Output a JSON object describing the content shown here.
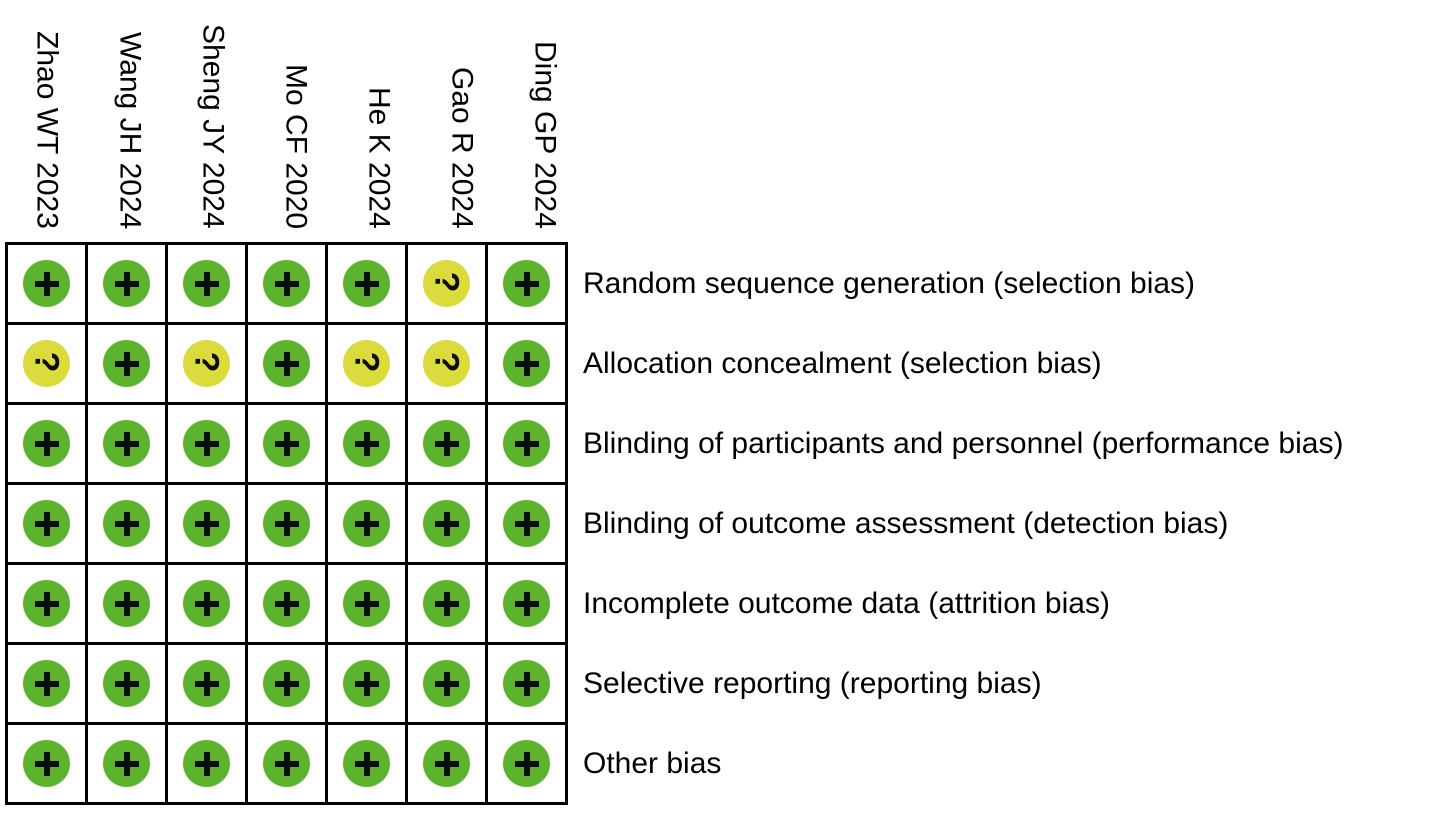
{
  "studies": [
    "Zhao WT 2023",
    "Wang JH 2024",
    "Sheng JY 2024",
    "Mo CF 2020",
    "He K 2024",
    "Gao R 2024",
    "Ding GP 2024"
  ],
  "domains": [
    {
      "label": "Random sequence generation (selection bias)",
      "judgements": [
        "low",
        "low",
        "low",
        "low",
        "low",
        "unclear",
        "low"
      ]
    },
    {
      "label": "Allocation concealment (selection bias)",
      "judgements": [
        "unclear",
        "low",
        "unclear",
        "low",
        "unclear",
        "unclear",
        "low"
      ]
    },
    {
      "label": "Blinding of participants and personnel (performance bias)",
      "judgements": [
        "low",
        "low",
        "low",
        "low",
        "low",
        "low",
        "low"
      ]
    },
    {
      "label": "Blinding of outcome assessment (detection bias)",
      "judgements": [
        "low",
        "low",
        "low",
        "low",
        "low",
        "low",
        "low"
      ]
    },
    {
      "label": "Incomplete outcome data (attrition bias)",
      "judgements": [
        "low",
        "low",
        "low",
        "low",
        "low",
        "low",
        "low"
      ]
    },
    {
      "label": "Selective reporting (reporting bias)",
      "judgements": [
        "low",
        "low",
        "low",
        "low",
        "low",
        "low",
        "low"
      ]
    },
    {
      "label": "Other bias",
      "judgements": [
        "low",
        "low",
        "low",
        "low",
        "low",
        "low",
        "low"
      ]
    }
  ],
  "symbols": {
    "low": "+",
    "unclear": "?"
  },
  "colors": {
    "low": "#5CB32E",
    "unclear": "#DBDB3D",
    "symbol": "#0D0D0D",
    "grid_line": "#000000",
    "background": "#FFFFFF"
  },
  "chart_data": {
    "type": "heatmap",
    "title": "",
    "columns": [
      "Zhao WT 2023",
      "Wang JH 2024",
      "Sheng JY 2024",
      "Mo CF 2020",
      "He K 2024",
      "Gao R 2024",
      "Ding GP 2024"
    ],
    "rows": [
      "Random sequence generation (selection bias)",
      "Allocation concealment (selection bias)",
      "Blinding of participants and personnel (performance bias)",
      "Blinding of outcome assessment (detection bias)",
      "Incomplete outcome data (attrition bias)",
      "Selective reporting (reporting bias)",
      "Other bias"
    ],
    "values": [
      [
        "low",
        "low",
        "low",
        "low",
        "low",
        "unclear",
        "low"
      ],
      [
        "unclear",
        "low",
        "unclear",
        "low",
        "unclear",
        "unclear",
        "low"
      ],
      [
        "low",
        "low",
        "low",
        "low",
        "low",
        "low",
        "low"
      ],
      [
        "low",
        "low",
        "low",
        "low",
        "low",
        "low",
        "low"
      ],
      [
        "low",
        "low",
        "low",
        "low",
        "low",
        "low",
        "low"
      ],
      [
        "low",
        "low",
        "low",
        "low",
        "low",
        "low",
        "low"
      ],
      [
        "low",
        "low",
        "low",
        "low",
        "low",
        "low",
        "low"
      ]
    ],
    "cell_symbols": {
      "low": "+",
      "unclear": "?"
    },
    "cell_colors": {
      "low": "#5CB32E",
      "unclear": "#DBDB3D"
    },
    "legend_position": "none",
    "grid": "on"
  }
}
